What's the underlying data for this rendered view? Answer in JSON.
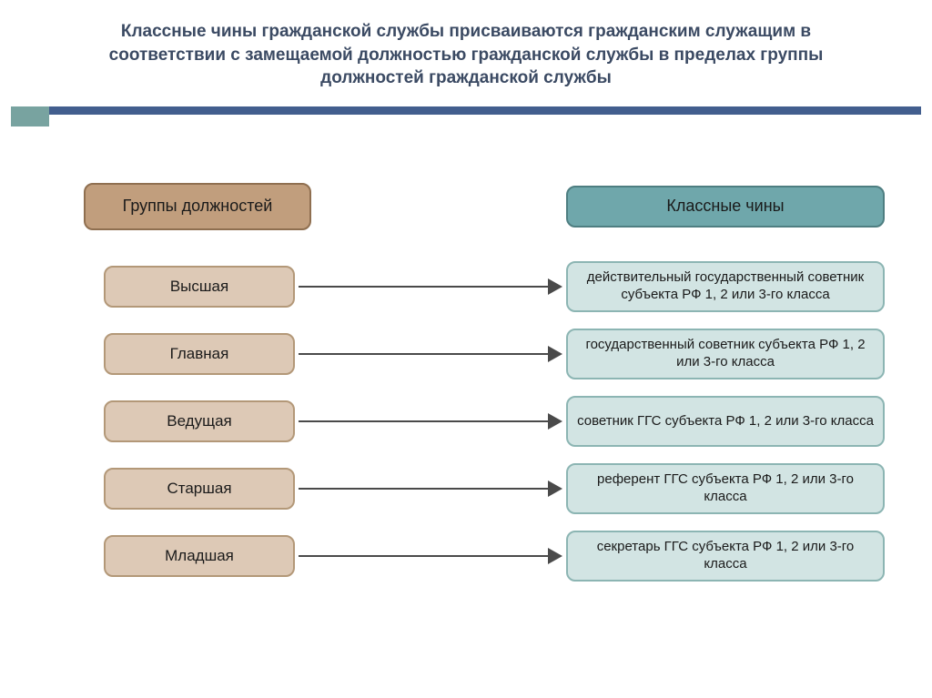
{
  "title": {
    "text": "Классные чины гражданской службы присваиваются гражданским служащим в соответствии с замещаемой должностью гражданской службы в пределах группы должностей гражданской службы",
    "color": "#3b4a63",
    "fontsize": 19
  },
  "divider": {
    "blue": "#425e8e",
    "teal": "#78a3a0"
  },
  "left_header": {
    "label": "Группы должностей",
    "bg": "#c19e7d",
    "border": "#8f6f50",
    "text": "#1a1a1a"
  },
  "right_header": {
    "label": "Классные чины",
    "bg": "#6fa7ab",
    "border": "#4e7e81",
    "text": "#1a1a1a"
  },
  "left_box_style": {
    "bg": "#ddc9b6",
    "border": "#b39878",
    "text": "#1a1a1a"
  },
  "right_box_style": {
    "bg": "#d2e4e3",
    "border": "#8cb5b3",
    "text": "#1a1a1a"
  },
  "arrow_color": "#4a4a4a",
  "pairs": [
    {
      "group": "Высшая",
      "rank": "действительный государственный советник субъекта РФ 1, 2 или 3-го класса"
    },
    {
      "group": "Главная",
      "rank": "государственный советник субъекта РФ 1, 2 или 3-го класса"
    },
    {
      "group": "Ведущая",
      "rank": "советник ГГС субъекта РФ 1, 2 или 3-го класса"
    },
    {
      "group": "Старшая",
      "rank": "референт ГГС  субъекта РФ 1, 2 или 3-го класса"
    },
    {
      "group": "Младшая",
      "rank": "секретарь ГГС субъекта РФ 1, 2 или 3-го класса"
    }
  ]
}
